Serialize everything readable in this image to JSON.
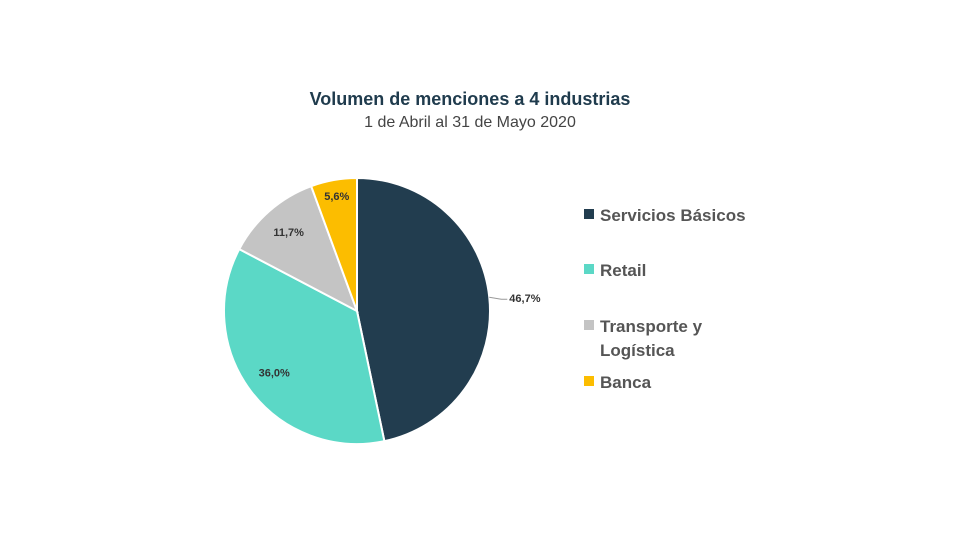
{
  "chart_data": {
    "type": "pie",
    "title": "Volumen de menciones a 4 industrias",
    "subtitle": "1 de Abril al 31 de Mayo 2020",
    "categories": [
      "Servicios Básicos",
      "Retail",
      "Transporte y Logística",
      "Banca"
    ],
    "values": [
      46.7,
      36.0,
      11.7,
      5.6
    ],
    "labels": [
      "46,7%",
      "36,0%",
      "11,7%",
      "5,6%"
    ],
    "colors": [
      "#223d4f",
      "#5bd8c6",
      "#c4c4c4",
      "#fcbd00"
    ],
    "legend_position": "right"
  },
  "legend": {
    "items": [
      {
        "label": "Servicios Básicos",
        "color": "#223d4f"
      },
      {
        "label": "Retail",
        "color": "#5bd8c6"
      },
      {
        "label": "Transporte y Logística",
        "color": "#c4c4c4"
      },
      {
        "label": "Banca",
        "color": "#fcbd00"
      }
    ]
  }
}
